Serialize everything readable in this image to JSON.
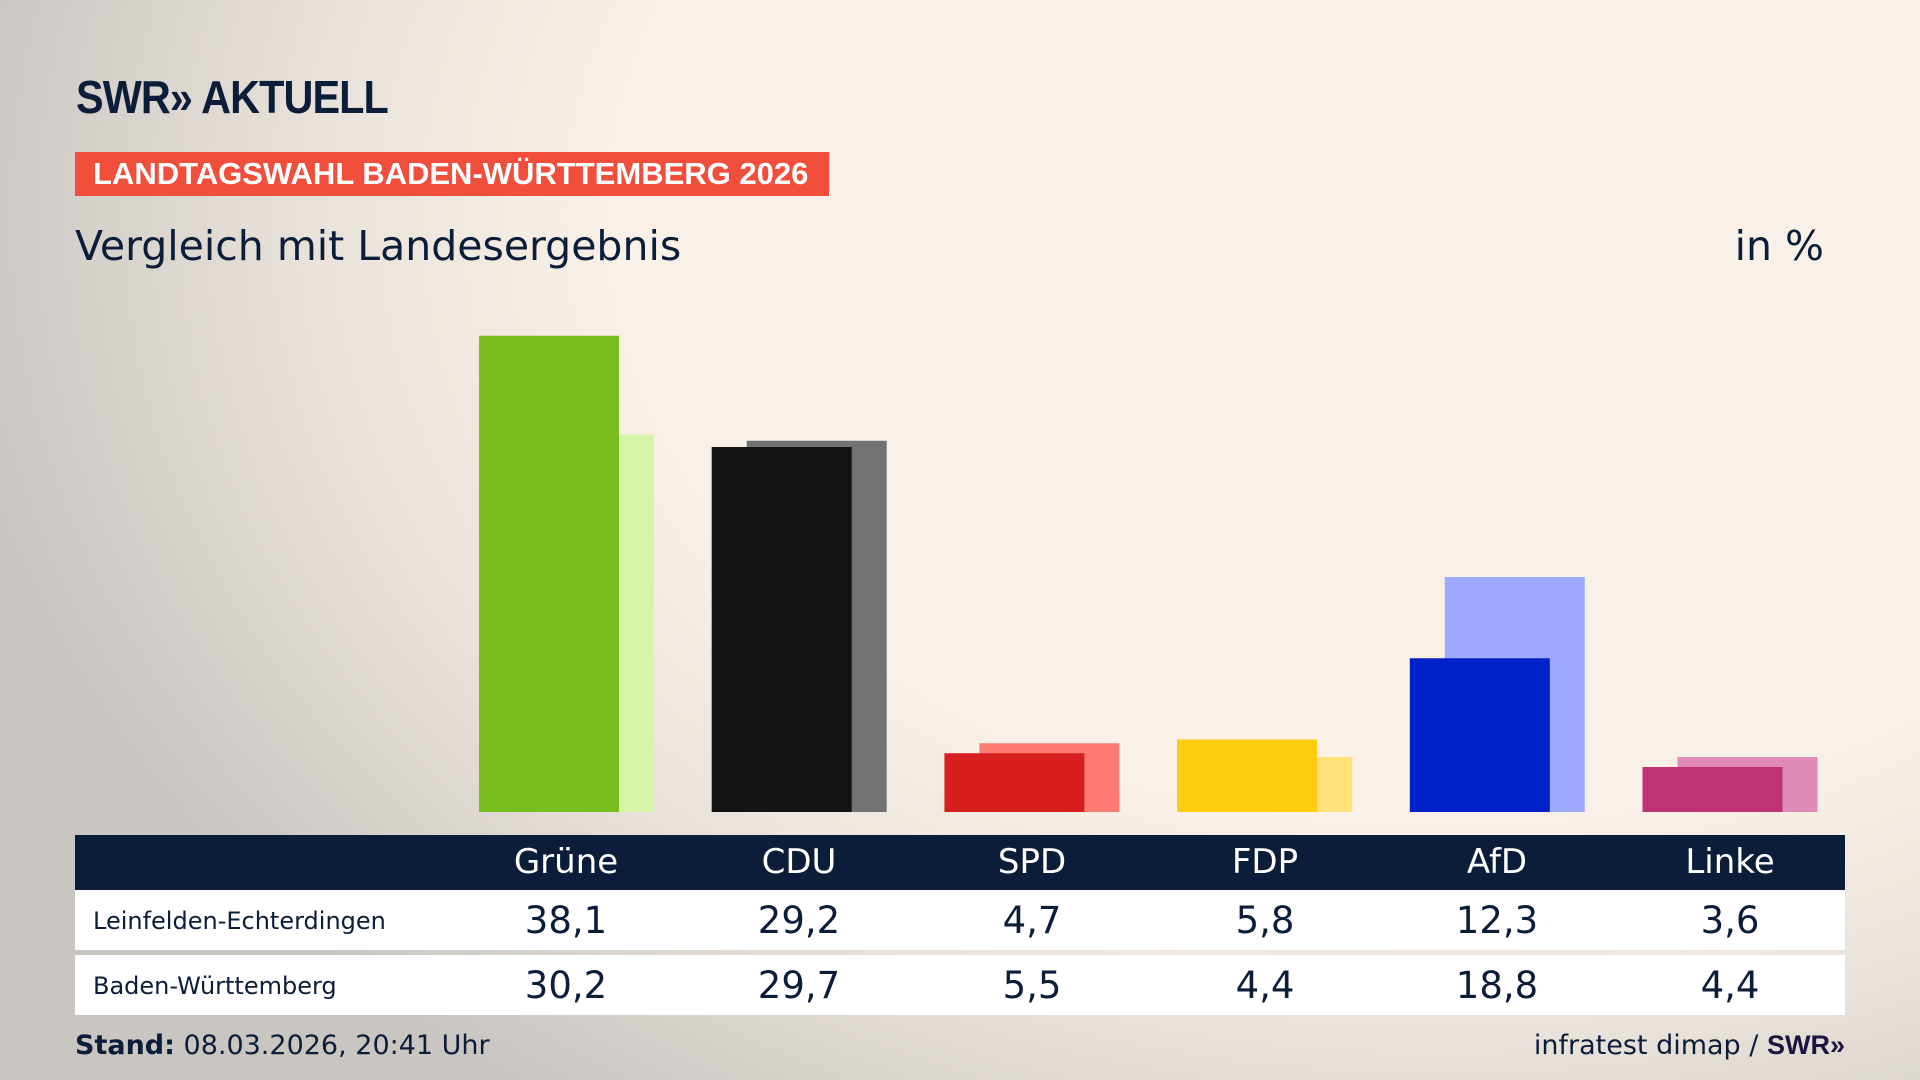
{
  "header": {
    "logo": "SWR» AKTUELL",
    "banner": "LANDTAGSWAHL BADEN-WÜRTTEMBERG 2026",
    "subtitle": "Vergleich mit Landesergebnis",
    "unit": "in %"
  },
  "chart_data": {
    "type": "bar",
    "categories": [
      "Grüne",
      "CDU",
      "SPD",
      "FDP",
      "AfD",
      "Linke"
    ],
    "series": [
      {
        "name": "Leinfelden-Echterdingen",
        "values": [
          38.1,
          29.2,
          4.7,
          5.8,
          12.3,
          3.6
        ],
        "colors": [
          "#78be1e",
          "#141414",
          "#d71f1f",
          "#ffcd0e",
          "#0021c8",
          "#bf3276"
        ]
      },
      {
        "name": "Baden-Württemberg",
        "values": [
          30.2,
          29.7,
          5.5,
          4.4,
          18.8,
          4.4
        ],
        "colors": [
          "#d6f5a8",
          "#727272",
          "#fe7b74",
          "#ffe37a",
          "#9eaaff",
          "#e08ab8"
        ]
      }
    ],
    "display_values": [
      [
        "38,1",
        "29,2",
        "4,7",
        "5,8",
        "12,3",
        "3,6"
      ],
      [
        "30,2",
        "29,7",
        "5,5",
        "4,4",
        "18,8",
        "4,4"
      ]
    ],
    "ylim": [
      0,
      40
    ],
    "grid": false,
    "legend": "table-below"
  },
  "footer": {
    "stand_label": "Stand:",
    "stand_value": "08.03.2026, 20:41 Uhr",
    "source": "infratest dimap /",
    "source_logo": "SWR»"
  }
}
